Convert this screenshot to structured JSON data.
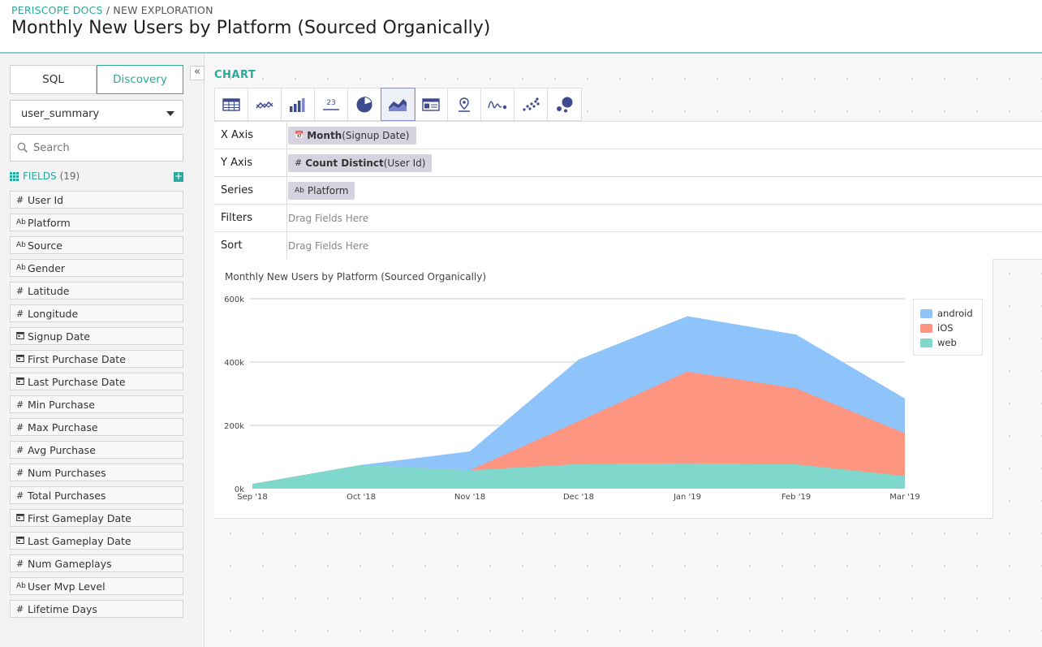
{
  "breadcrumb": {
    "root": "PERISCOPE DOCS",
    "separator": " / ",
    "current": "NEW EXPLORATION"
  },
  "page_title": "Monthly New Users by Platform (Sourced Organically)",
  "sidebar": {
    "collapse_glyph": "«",
    "tabs": [
      {
        "label": "SQL"
      },
      {
        "label": "Discovery",
        "active": true
      }
    ],
    "dataset": "user_summary",
    "search_placeholder": "Search",
    "fields_label": "FIELDS",
    "fields_count": "(19)",
    "add_glyph": "+",
    "fields": [
      {
        "type": "#",
        "name": "User Id"
      },
      {
        "type": "Ab",
        "name": "Platform"
      },
      {
        "type": "Ab",
        "name": "Source"
      },
      {
        "type": "Ab",
        "name": "Gender"
      },
      {
        "type": "#",
        "name": "Latitude"
      },
      {
        "type": "#",
        "name": "Longitude"
      },
      {
        "type": "cal",
        "name": "Signup Date"
      },
      {
        "type": "cal",
        "name": "First Purchase Date"
      },
      {
        "type": "cal",
        "name": "Last Purchase Date"
      },
      {
        "type": "#",
        "name": "Min Purchase"
      },
      {
        "type": "#",
        "name": "Max Purchase"
      },
      {
        "type": "#",
        "name": "Avg Purchase"
      },
      {
        "type": "#",
        "name": "Num Purchases"
      },
      {
        "type": "#",
        "name": "Total Purchases"
      },
      {
        "type": "cal",
        "name": "First Gameplay Date"
      },
      {
        "type": "cal",
        "name": "Last Gameplay Date"
      },
      {
        "type": "#",
        "name": "Num Gameplays"
      },
      {
        "type": "Ab",
        "name": "User Mvp Level"
      },
      {
        "type": "#",
        "name": "Lifetime Days"
      }
    ]
  },
  "chart_section": {
    "label": "CHART",
    "viz_types": [
      "table-icon",
      "line-icon",
      "bar-icon",
      "number-icon",
      "pie-icon",
      "area-icon",
      "pivot-icon",
      "map-icon",
      "scatter-line-icon",
      "scatter-icon",
      "bubble-icon"
    ],
    "active_viz": "area-icon",
    "number_icon_text": "23"
  },
  "config": {
    "x_axis": {
      "label": "X Axis",
      "func": "Month",
      "field": "(Signup Date)",
      "type": "cal"
    },
    "y_axis": {
      "label": "Y Axis",
      "func": "Count Distinct",
      "field": "(User Id)",
      "type": "#"
    },
    "series": {
      "label": "Series",
      "field": "Platform",
      "type": "Ab"
    },
    "filters": {
      "label": "Filters",
      "hint": "Drag Fields Here"
    },
    "sort": {
      "label": "Sort",
      "hint": "Drag Fields Here"
    }
  },
  "colors": {
    "accent": "#2aa99a",
    "android": "#8fc4fb",
    "ios": "#fd9580",
    "web": "#7fd8cb"
  },
  "chart_data": {
    "type": "area",
    "title": "Monthly New Users by Platform (Sourced Organically)",
    "stacked": true,
    "categories": [
      "Sep '18",
      "Oct '18",
      "Nov '18",
      "Dec '18",
      "Jan '19",
      "Feb '19",
      "Mar '19"
    ],
    "y_ticks": [
      "0k",
      "200k",
      "400k",
      "600k"
    ],
    "ylim": [
      0,
      600000
    ],
    "series": [
      {
        "name": "android",
        "values": [
          0,
          0,
          60000,
          195000,
          175000,
          170000,
          110000
        ]
      },
      {
        "name": "iOS",
        "values": [
          0,
          0,
          0,
          135000,
          290000,
          240000,
          135000
        ]
      },
      {
        "name": "web",
        "values": [
          15000,
          75000,
          58000,
          78000,
          80000,
          77000,
          40000
        ]
      }
    ],
    "legend_position": "top-right",
    "grid": true
  }
}
